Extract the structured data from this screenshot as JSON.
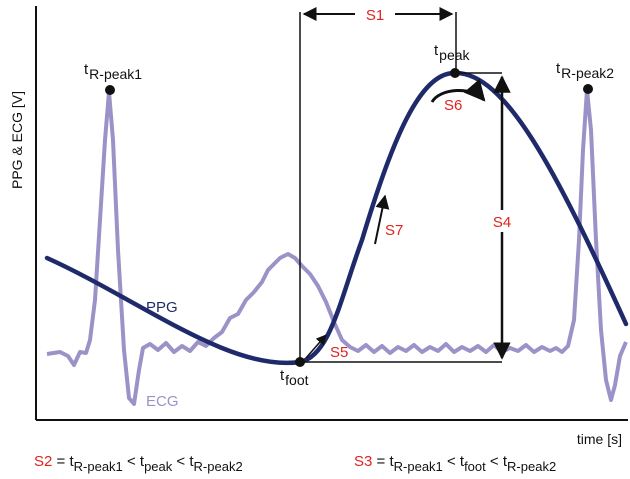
{
  "axes": {
    "y_label": "PPG & ECG [V]",
    "x_label": "time [s]"
  },
  "signals": {
    "ppg_label": "PPG",
    "ecg_label": "ECG"
  },
  "points": {
    "t_prefix": "t",
    "r_peak1_sub": "R-peak1",
    "r_peak2_sub": "R-peak2",
    "peak_sub": "peak",
    "foot_sub": "foot"
  },
  "features": {
    "s1": "S1",
    "s4": "S4",
    "s5": "S5",
    "s6": "S6",
    "s7": "S7"
  },
  "formulas": {
    "s2_name": "S2",
    "s3_name": "S3",
    "eq": " = ",
    "lt": " < ",
    "t": "t",
    "r_peak1": "R-peak1",
    "r_peak2": "R-peak2",
    "peak": "peak",
    "foot": "foot"
  },
  "colors": {
    "ppg": "#1f2a6b",
    "ecg": "#9b92c8",
    "feature_label": "#e0231f",
    "axis": "#111111"
  }
}
